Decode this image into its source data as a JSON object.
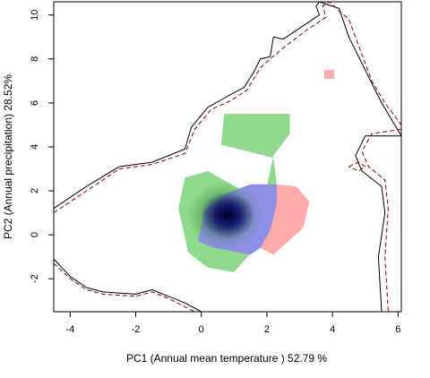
{
  "chart_data": {
    "type": "niche-overlap density map",
    "xlabel": "PC1 (Annual mean temperature ) 52.79 %",
    "ylabel": "PC2 (Annual precipitation) 28.52%",
    "xlim": [
      -4.5,
      6.1
    ],
    "ylim": [
      -3.5,
      10.6
    ],
    "x_ticks": [
      -4,
      -2,
      0,
      2,
      4,
      6
    ],
    "y_ticks": [
      -2,
      0,
      2,
      4,
      6,
      8,
      10
    ],
    "grid": false,
    "legend": "none",
    "colors": {
      "green_niche": "#8fd98f",
      "red_niche": "#ffaaaa",
      "overlap": "#8f8fe6",
      "density_core": "#0d0d5a",
      "solid_envelope": "#000000",
      "dashed_envelope": "#8b0000"
    },
    "regions": [
      {
        "name": "green",
        "polygon": [
          [
            0.7,
            5.5
          ],
          [
            2.7,
            5.5
          ],
          [
            2.7,
            4.6
          ],
          [
            2.2,
            3.6
          ],
          [
            2.0,
            2.2
          ],
          [
            1.5,
            1.8
          ],
          [
            0.2,
            2.9
          ],
          [
            -0.5,
            2.6
          ],
          [
            -0.7,
            1.2
          ],
          [
            -0.4,
            -0.8
          ],
          [
            0.2,
            -1.5
          ],
          [
            1.0,
            -1.7
          ],
          [
            1.6,
            -0.7
          ],
          [
            2.1,
            0.2
          ],
          [
            2.3,
            1.4
          ],
          [
            2.3,
            2.3
          ],
          [
            2.2,
            3.5
          ],
          [
            0.6,
            4.1
          ]
        ]
      },
      {
        "name": "red",
        "polygon": [
          [
            2.3,
            2.3
          ],
          [
            2.9,
            2.2
          ],
          [
            3.3,
            1.5
          ],
          [
            3.1,
            0.3
          ],
          [
            2.2,
            -0.9
          ],
          [
            1.8,
            -0.6
          ],
          [
            2.3,
            1.4
          ]
        ]
      },
      {
        "name": "red-patch",
        "polygon": [
          [
            3.75,
            7.5
          ],
          [
            4.05,
            7.5
          ],
          [
            4.05,
            7.1
          ],
          [
            3.75,
            7.1
          ]
        ]
      },
      {
        "name": "overlap",
        "polygon": [
          [
            0.1,
            1.1
          ],
          [
            0.8,
            1.9
          ],
          [
            1.5,
            2.3
          ],
          [
            2.3,
            2.3
          ],
          [
            2.3,
            1.4
          ],
          [
            2.1,
            0.2
          ],
          [
            1.8,
            -0.6
          ],
          [
            1.5,
            -0.9
          ],
          [
            0.4,
            -0.6
          ],
          [
            -0.1,
            -0.3
          ]
        ]
      }
    ],
    "density_peak": {
      "x": 0.8,
      "y": 0.9
    },
    "envelopes": [
      {
        "name": "solid-envelope",
        "style": "solid",
        "points": [
          [
            -4.5,
            1.2
          ],
          [
            -3.5,
            2.2
          ],
          [
            -2.5,
            3.1
          ],
          [
            -1.5,
            3.3
          ],
          [
            -0.5,
            3.9
          ],
          [
            -0.3,
            4.9
          ],
          [
            0.2,
            5.8
          ],
          [
            0.8,
            6.3
          ],
          [
            1.3,
            6.7
          ],
          [
            1.6,
            7.4
          ],
          [
            1.8,
            8.0
          ],
          [
            2.1,
            8.1
          ],
          [
            2.2,
            9.0
          ],
          [
            2.5,
            8.9
          ],
          [
            3.0,
            9.4
          ],
          [
            3.6,
            10.0
          ],
          [
            3.5,
            10.4
          ],
          [
            3.6,
            10.6
          ],
          [
            4.2,
            10.3
          ],
          [
            4.5,
            9.0
          ],
          [
            5.0,
            7.5
          ],
          [
            5.5,
            6.0
          ],
          [
            6.1,
            4.5
          ]
        ]
      },
      {
        "name": "dashed-envelope",
        "style": "dashed",
        "points": [
          [
            -4.5,
            1.0
          ],
          [
            -3.5,
            2.0
          ],
          [
            -2.5,
            3.0
          ],
          [
            -1.5,
            3.2
          ],
          [
            -0.5,
            3.7
          ],
          [
            -0.2,
            4.8
          ],
          [
            0.3,
            5.7
          ],
          [
            0.9,
            6.1
          ],
          [
            1.4,
            6.6
          ],
          [
            1.8,
            7.6
          ],
          [
            2.1,
            8.0
          ],
          [
            2.5,
            8.5
          ],
          [
            3.2,
            9.3
          ],
          [
            3.8,
            9.9
          ],
          [
            3.7,
            10.4
          ],
          [
            3.9,
            10.6
          ],
          [
            4.5,
            9.8
          ],
          [
            4.8,
            8.6
          ],
          [
            5.2,
            7.0
          ],
          [
            5.6,
            6.0
          ],
          [
            6.1,
            5.0
          ]
        ]
      },
      {
        "name": "solid-envelope-lower",
        "style": "solid",
        "points": [
          [
            -4.5,
            -1.1
          ],
          [
            -4.0,
            -1.9
          ],
          [
            -3.5,
            -2.4
          ],
          [
            -3.0,
            -2.6
          ],
          [
            -2.0,
            -2.7
          ],
          [
            -1.5,
            -2.5
          ],
          [
            -1.0,
            -2.8
          ],
          [
            -0.5,
            -3.1
          ],
          [
            0.0,
            -3.5
          ]
        ]
      },
      {
        "name": "dashed-envelope-lower",
        "style": "dashed",
        "points": [
          [
            -4.5,
            -1.3
          ],
          [
            -4.0,
            -2.0
          ],
          [
            -3.5,
            -2.5
          ],
          [
            -3.0,
            -2.7
          ],
          [
            -2.0,
            -2.8
          ],
          [
            -1.5,
            -2.6
          ],
          [
            -1.0,
            -2.9
          ],
          [
            -0.6,
            -3.2
          ],
          [
            -0.2,
            -3.5
          ]
        ]
      },
      {
        "name": "solid-envelope-right",
        "style": "solid",
        "points": [
          [
            6.1,
            4.5
          ],
          [
            5.0,
            4.5
          ],
          [
            4.7,
            3.6
          ],
          [
            4.9,
            2.9
          ],
          [
            5.5,
            2.2
          ],
          [
            5.6,
            1.0
          ],
          [
            5.4,
            -1.0
          ],
          [
            5.5,
            -3.5
          ]
        ]
      },
      {
        "name": "dashed-envelope-right",
        "style": "dashed",
        "points": [
          [
            6.1,
            4.8
          ],
          [
            5.2,
            4.6
          ],
          [
            4.9,
            3.8
          ],
          [
            5.1,
            3.1
          ],
          [
            5.6,
            2.5
          ],
          [
            5.7,
            1.2
          ],
          [
            5.6,
            -1.0
          ],
          [
            5.7,
            -3.5
          ]
        ]
      },
      {
        "name": "dashed-loop-right",
        "style": "dashed",
        "points": [
          [
            4.5,
            3.1
          ],
          [
            4.8,
            3.3
          ],
          [
            5.0,
            3.1
          ],
          [
            4.8,
            2.9
          ],
          [
            4.5,
            3.1
          ]
        ]
      }
    ]
  }
}
